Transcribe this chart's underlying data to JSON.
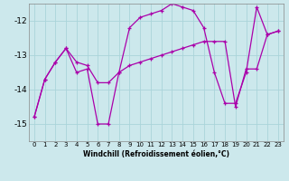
{
  "xlabel": "Windchill (Refroidissement éolien,°C)",
  "background_color": "#cce8ec",
  "grid_color": "#aad4da",
  "line_color": "#aa00aa",
  "x": [
    0,
    1,
    2,
    3,
    4,
    5,
    6,
    7,
    8,
    9,
    10,
    11,
    12,
    13,
    14,
    15,
    16,
    17,
    18,
    19,
    20,
    21,
    22,
    23
  ],
  "series1": [
    -14.8,
    -13.7,
    -13.2,
    -12.8,
    -13.5,
    -13.4,
    -15.0,
    -15.0,
    -13.5,
    -12.2,
    -11.9,
    -11.8,
    -11.7,
    -11.5,
    -11.6,
    -11.7,
    -12.2,
    -13.5,
    -14.4,
    -14.4,
    -13.5,
    -11.6,
    -12.4,
    -12.3
  ],
  "series2": [
    -14.8,
    -13.7,
    -13.2,
    -12.8,
    -13.2,
    -13.3,
    -13.8,
    -13.8,
    -13.5,
    -13.3,
    -13.2,
    -13.1,
    -13.0,
    -12.9,
    -12.8,
    -12.7,
    -12.6,
    -12.6,
    -12.6,
    -14.5,
    -13.4,
    -13.4,
    -12.4,
    -12.3
  ],
  "ylim": [
    -15.5,
    -11.5
  ],
  "xlim": [
    -0.5,
    23.5
  ],
  "yticks": [
    -15,
    -14,
    -13,
    -12
  ],
  "xticks": [
    0,
    1,
    2,
    3,
    4,
    5,
    6,
    7,
    8,
    9,
    10,
    11,
    12,
    13,
    14,
    15,
    16,
    17,
    18,
    19,
    20,
    21,
    22,
    23
  ],
  "xlabel_fontsize": 5.5,
  "ytick_fontsize": 6.5,
  "xtick_fontsize": 5.0
}
